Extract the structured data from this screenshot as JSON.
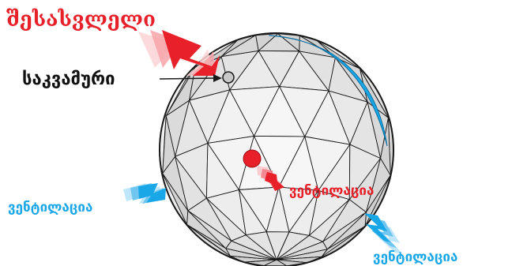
{
  "labels": {
    "entrance": "შესასვლელი",
    "chimney": "საკვამური",
    "ventilation_left": "ვენტილაცია",
    "ventilation_center": "ვენტილაცია",
    "ventilation_right": "ვენტილაცია"
  },
  "colors": {
    "entrance": "#e8202a",
    "ventilation": "#1aa7e8",
    "chimney_marker": "#c8c8c8",
    "sphere_light": "#f4f4f4",
    "sphere_shadow": "#cfcfcf",
    "edge": "#1a1a1a",
    "text_dark": "#111111"
  }
}
